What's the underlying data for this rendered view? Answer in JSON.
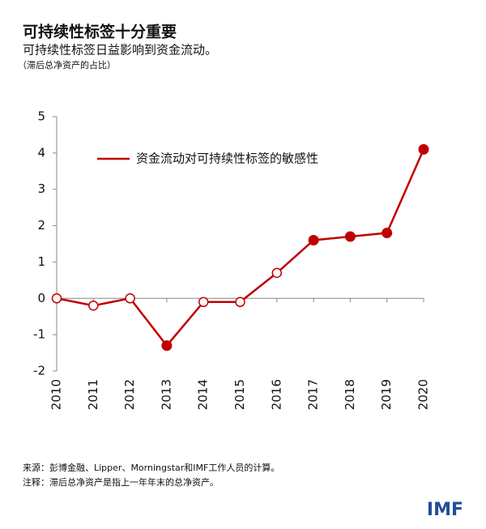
{
  "chart_data": {
    "type": "line",
    "title": "可持续性标签十分重要",
    "subtitle": "可持续性标签日益影响到资金流动。",
    "note": "（滞后总净资产的占比）",
    "categories": [
      "2010",
      "2011",
      "2012",
      "2013",
      "2014",
      "2015",
      "2016",
      "2017",
      "2018",
      "2019",
      "2020"
    ],
    "series": [
      {
        "name": "资金流动对可持续性标签的敏感性",
        "color": "#c00000",
        "values": [
          0,
          -0.2,
          0,
          -1.3,
          -0.1,
          -0.1,
          0.7,
          1.6,
          1.7,
          1.8,
          4.1
        ],
        "filled": [
          false,
          false,
          false,
          true,
          false,
          false,
          false,
          true,
          true,
          true,
          true
        ]
      }
    ],
    "ylim": [
      -2,
      5
    ],
    "yticks": [
      -2,
      -1,
      0,
      1,
      2,
      3,
      4,
      5
    ],
    "grid": false
  },
  "footer": {
    "source": "来源：彭博金融、Lipper、Morningstar和IMF工作人员的计算。",
    "note": "注释：滞后总净资产是指上一年年末的总净资产。",
    "logo": "IMF"
  }
}
